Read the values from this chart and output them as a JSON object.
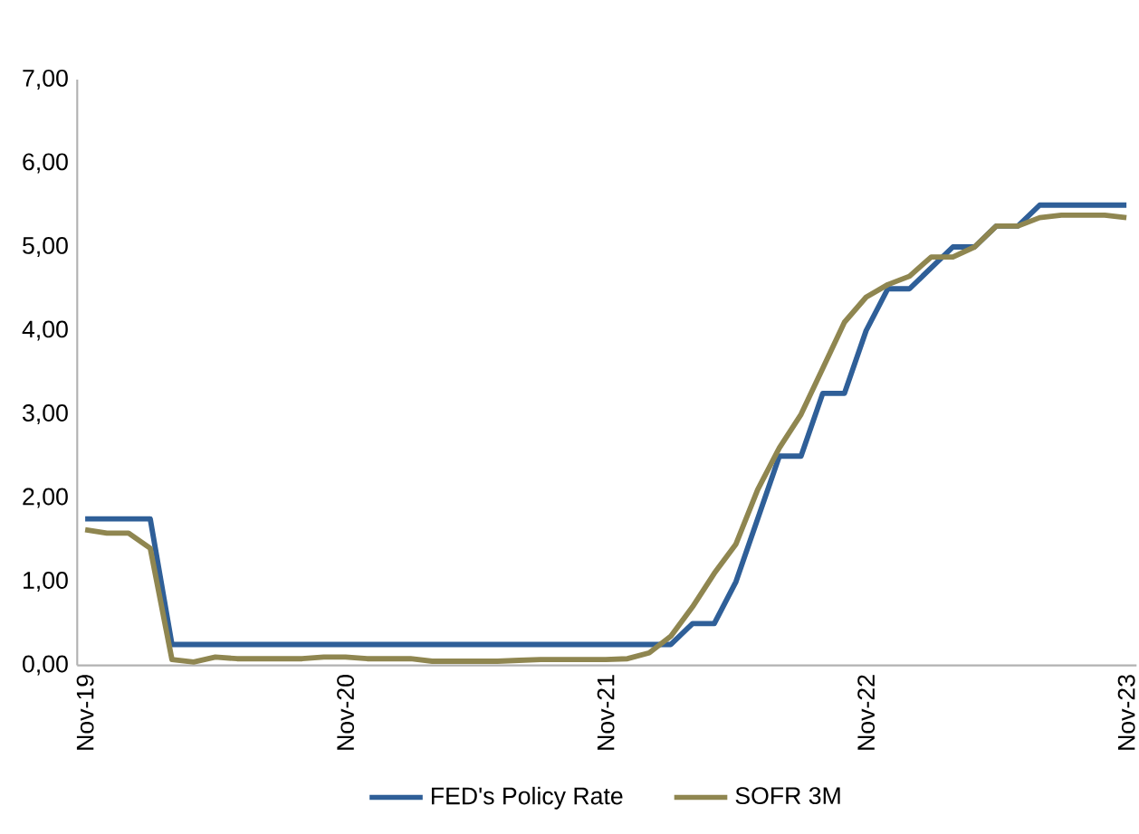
{
  "chart_data": {
    "type": "line",
    "x": [
      "2019-11",
      "2019-12",
      "2020-01",
      "2020-02",
      "2020-03",
      "2020-04",
      "2020-05",
      "2020-06",
      "2020-07",
      "2020-08",
      "2020-09",
      "2020-10",
      "2020-11",
      "2020-12",
      "2021-01",
      "2021-02",
      "2021-03",
      "2021-04",
      "2021-05",
      "2021-06",
      "2021-07",
      "2021-08",
      "2021-09",
      "2021-10",
      "2021-11",
      "2021-12",
      "2022-01",
      "2022-02",
      "2022-03",
      "2022-04",
      "2022-05",
      "2022-06",
      "2022-07",
      "2022-08",
      "2022-09",
      "2022-10",
      "2022-11",
      "2022-12",
      "2023-01",
      "2023-02",
      "2023-03",
      "2023-04",
      "2023-05",
      "2023-06",
      "2023-07",
      "2023-08",
      "2023-09",
      "2023-10",
      "2023-11"
    ],
    "series": [
      {
        "name": "FED's Policy Rate",
        "color": "#2f5f98",
        "values": [
          1.75,
          1.75,
          1.75,
          1.75,
          0.25,
          0.25,
          0.25,
          0.25,
          0.25,
          0.25,
          0.25,
          0.25,
          0.25,
          0.25,
          0.25,
          0.25,
          0.25,
          0.25,
          0.25,
          0.25,
          0.25,
          0.25,
          0.25,
          0.25,
          0.25,
          0.25,
          0.25,
          0.25,
          0.5,
          0.5,
          1.0,
          1.75,
          2.5,
          2.5,
          3.25,
          3.25,
          4.0,
          4.5,
          4.5,
          4.75,
          5.0,
          5.0,
          5.25,
          5.25,
          5.5,
          5.5,
          5.5,
          5.5,
          5.5
        ]
      },
      {
        "name": "SOFR 3M",
        "color": "#8f8650",
        "values": [
          1.62,
          1.58,
          1.58,
          1.4,
          0.07,
          0.04,
          0.1,
          0.08,
          0.08,
          0.08,
          0.08,
          0.1,
          0.1,
          0.08,
          0.08,
          0.08,
          0.05,
          0.05,
          0.05,
          0.05,
          0.06,
          0.07,
          0.07,
          0.07,
          0.07,
          0.08,
          0.15,
          0.35,
          0.7,
          1.1,
          1.45,
          2.1,
          2.6,
          3.0,
          3.55,
          4.1,
          4.4,
          4.55,
          4.65,
          4.88,
          4.88,
          5.0,
          5.25,
          5.25,
          5.35,
          5.38,
          5.38,
          5.38,
          5.35
        ]
      }
    ],
    "xlim": [
      "2019-10-20",
      "2023-11-15"
    ],
    "xticks": [
      {
        "value": "2019-11",
        "label": "Nov-19"
      },
      {
        "value": "2020-11",
        "label": "Nov-20"
      },
      {
        "value": "2021-11",
        "label": "Nov-21"
      },
      {
        "value": "2022-11",
        "label": "Nov-22"
      },
      {
        "value": "2023-11",
        "label": "Nov-23"
      }
    ],
    "ylim": [
      0,
      7
    ],
    "yticks": [
      {
        "value": 0,
        "label": "0,00"
      },
      {
        "value": 1,
        "label": "1,00"
      },
      {
        "value": 2,
        "label": "2,00"
      },
      {
        "value": 3,
        "label": "3,00"
      },
      {
        "value": 4,
        "label": "4,00"
      },
      {
        "value": 5,
        "label": "5,00"
      },
      {
        "value": 6,
        "label": "6,00"
      },
      {
        "value": 7,
        "label": "7,00"
      }
    ],
    "grid": false,
    "legend": "bottom",
    "marker": "none",
    "line_style": "solid"
  }
}
